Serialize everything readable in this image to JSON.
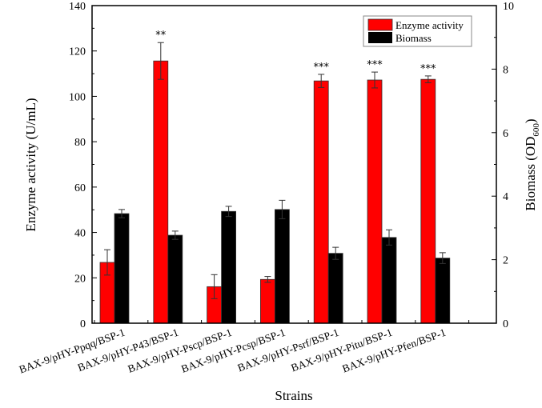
{
  "chart_data": {
    "type": "bar",
    "title": "",
    "xlabel": "Strains",
    "ylabel": "Enzyme activity (U/mL)",
    "y2label": {
      "main": "Biomass (OD",
      "sub": "600",
      "close": ")"
    },
    "ylim": [
      0,
      140
    ],
    "y2lim": [
      0,
      10
    ],
    "yticks": [
      0,
      20,
      40,
      60,
      80,
      100,
      120,
      140
    ],
    "y2ticks": [
      0,
      2,
      4,
      6,
      8,
      10
    ],
    "grid": false,
    "legend_position": "top-right",
    "categories": [
      "BAX-9/pHY-Ppqq/BSP-1",
      "BAX-9/pHY-P43/BSP-1",
      "BAX-9/pHY-Pscp/BSP-1",
      "BAX-9/pHY-Pcsp/BSP-1",
      "BAX-9/pHY-Psrf/BSP-1",
      "BAX-9/pHY-Pitu/BSP-1",
      "BAX-9/pHY-Pfen/BSP-1"
    ],
    "series": [
      {
        "name": "Enzyme activity",
        "axis": "left",
        "color": "#ff0000",
        "values": [
          26.8,
          115.6,
          16.1,
          19.3,
          106.8,
          107.2,
          107.5
        ],
        "errors": [
          5.6,
          8.1,
          5.3,
          1.3,
          2.9,
          3.5,
          1.5
        ]
      },
      {
        "name": "Biomass",
        "axis": "right",
        "color": "#000000",
        "values": [
          3.45,
          2.77,
          3.52,
          3.58,
          2.2,
          2.7,
          2.05
        ],
        "errors": [
          0.13,
          0.13,
          0.16,
          0.29,
          0.19,
          0.24,
          0.17
        ]
      }
    ],
    "annotations": [
      "",
      "**",
      "",
      "",
      "***",
      "***",
      "***"
    ]
  }
}
